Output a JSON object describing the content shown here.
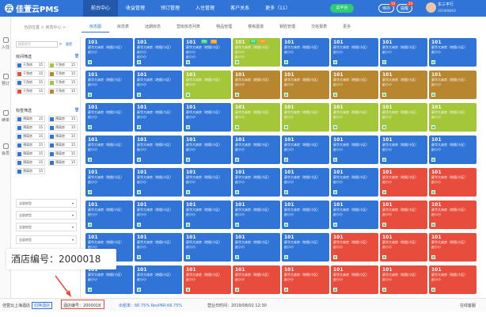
{
  "app": {
    "logo_text": "佳萱云PMS"
  },
  "nav": {
    "items": [
      "前台中心",
      "收益管理",
      "预订管理",
      "入住管理",
      "客户关系",
      "更多（11）"
    ]
  },
  "header": {
    "cloud_label": "云平台",
    "pending_label": "待办",
    "pending_badge": "10",
    "notice_label": "提醒",
    "notice_badge": "20",
    "user_name": "东三平行",
    "user_sub": "2019/08/02"
  },
  "left_rail": [
    "入住",
    "预订",
    "续单",
    "会员"
  ],
  "breadcrumb": "当前位置 > 房态中心 >",
  "tabs": [
    "房态图",
    "房态表",
    "远期房态",
    "营房房态列表",
    "物品管理",
    "楼栋图谱",
    "钥匙管理",
    "交班报表",
    "更多"
  ],
  "filters": {
    "search_placeholder": "搜索房号",
    "reset_label": "重置",
    "room_filter_title": "房间筛选",
    "room_chips": [
      {
        "label": "干净房",
        "count": "15",
        "color": "#2f74d6"
      },
      {
        "label": "干净房",
        "count": "15",
        "color": "#a4c639"
      },
      {
        "label": "干净房",
        "count": "15",
        "color": "#e74c3c"
      },
      {
        "label": "干净房",
        "count": "15",
        "color": "#b8862e"
      },
      {
        "label": "干净房",
        "count": "15",
        "color": "#2f74d6"
      },
      {
        "label": "干净房",
        "count": "15",
        "color": "#a4c639"
      },
      {
        "label": "干净房",
        "count": "15",
        "color": "#e74c3c"
      },
      {
        "label": "干净房",
        "count": "15",
        "color": "#b8862e"
      }
    ],
    "tag_filter_title": "标签筛选",
    "tag_chips": [
      {
        "label": "预离房",
        "count": "15"
      },
      {
        "label": "预离房",
        "count": "15"
      },
      {
        "label": "预离房",
        "count": "15"
      },
      {
        "label": "预离房",
        "count": "15"
      },
      {
        "label": "预离房",
        "count": "15"
      },
      {
        "label": "预离房",
        "count": "15"
      },
      {
        "label": "预离房",
        "count": "15"
      },
      {
        "label": "预离房",
        "count": "15"
      },
      {
        "label": "预离房",
        "count": "15"
      },
      {
        "label": "预离房",
        "count": "15"
      },
      {
        "label": "预离房",
        "count": "15"
      },
      {
        "label": "预离房",
        "count": "15"
      },
      {
        "label": "预离房",
        "count": "15"
      }
    ],
    "dropdowns": [
      "全部房型",
      "全部房型",
      "全部房型",
      "全部房型"
    ]
  },
  "room_card": {
    "number": "101",
    "line1": "豪华大床房（地毯/小区）",
    "line2": "赵小小",
    "line3": "赵小小",
    "tag_a": "预抵",
    "tag_b": "今日"
  },
  "rows": [
    [
      "#2f74d6",
      "#2f74d6",
      "#2f74d6",
      "#a4c639",
      "#2f74d6",
      "#2f74d6",
      "#2f74d6",
      "#2f74d6"
    ],
    [
      "#2f74d6",
      "#2f74d6",
      "#a4c639",
      "#b8862e",
      "#b8862e",
      "#b8862e",
      "#b8862e",
      "#b8862e"
    ],
    [
      "#2f74d6",
      "#2f74d6",
      "#2f74d6",
      "#a4c639",
      "#a4c639",
      "#a4c639",
      "#a4c639",
      "#a4c639"
    ],
    [
      "#2f74d6",
      "#2f74d6",
      "#2f74d6",
      "#2f74d6",
      "#2f74d6",
      "#2f74d6",
      "#2f74d6",
      "#2f74d6"
    ],
    [
      "#2f74d6",
      "#2f74d6",
      "#2f74d6",
      "#2f74d6",
      "#2f74d6",
      "#2f74d6",
      "#e74c3c",
      "#e74c3c"
    ],
    [
      "#2f74d6",
      "#2f74d6",
      "#2f74d6",
      "#2f74d6",
      "#2f74d6",
      "#2f74d6",
      "#e74c3c",
      "#e74c3c"
    ],
    [
      "#2f74d6",
      "#2f74d6",
      "#2f74d6",
      "#2f74d6",
      "#2f74d6",
      "#e74c3c",
      "#e74c3c",
      "#e74c3c"
    ],
    [
      "#2f74d6",
      "#2f74d6",
      "#e74c3c",
      "#e74c3c",
      "#e74c3c",
      "#e74c3c",
      "#e74c3c",
      "#e74c3c"
    ]
  ],
  "overlay": {
    "hotel_code": "酒店编号：2000018"
  },
  "status": {
    "store": "佳萱云上海酒店",
    "switch_label": "切换酒店",
    "hotel_code": "酒店编号：2000018",
    "occupancy": "出租率：66.75%  RevPAR:66.75%",
    "business_time": "营业日时间：2019/08/02  12:30",
    "online": "在线客服"
  }
}
